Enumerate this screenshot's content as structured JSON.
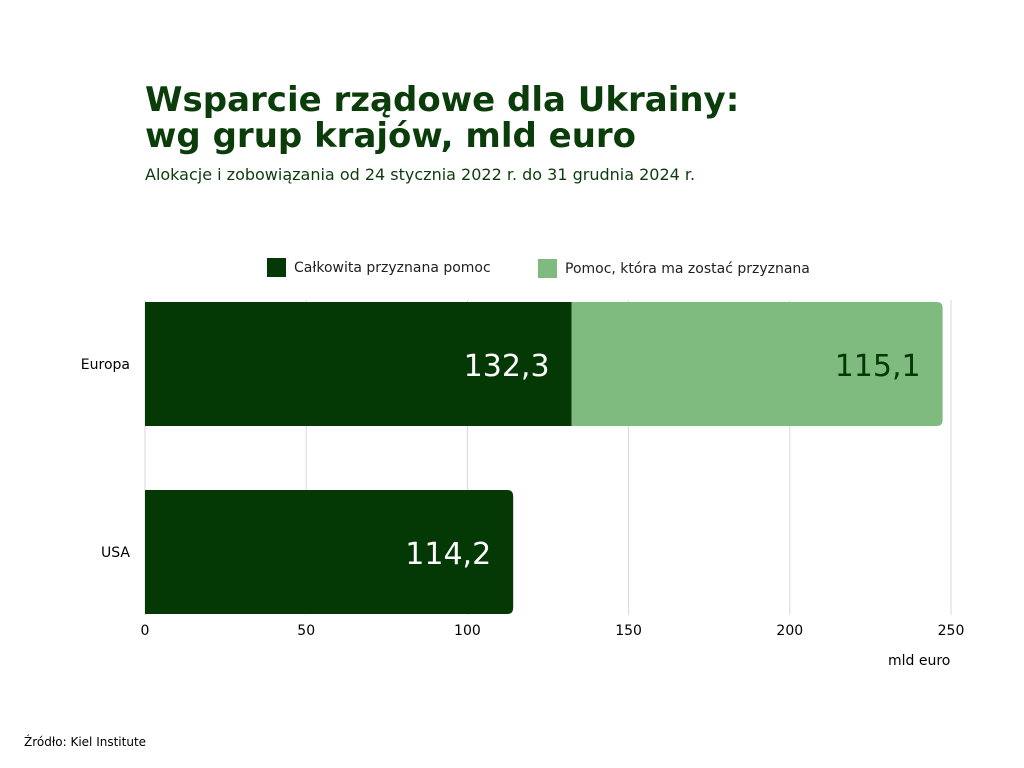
{
  "chart_data": {
    "type": "bar",
    "orientation": "horizontal",
    "stacked": true,
    "title": "Wsparcie rządowe dla Ukrainy:\nwg grup krajów, mld euro",
    "subtitle": "Alokacje i zobowiązania od 24 stycznia 2022 r. do 31 grudnia 2024 r.",
    "categories": [
      "Europa",
      "USA"
    ],
    "series": [
      {
        "name": "Całkowita przyznana pomoc",
        "values": [
          132.3,
          114.2
        ],
        "labels": [
          "132,3",
          "114,2"
        ],
        "color": "#043804"
      },
      {
        "name": "Pomoc, która ma zostać przyznana",
        "values": [
          115.1,
          0
        ],
        "labels": [
          "115,1",
          ""
        ],
        "color": "#7fba7f"
      }
    ],
    "xlim": [
      0,
      250
    ],
    "x_ticks": [
      0,
      50,
      100,
      150,
      200,
      250
    ],
    "x_tick_labels": [
      "0",
      "50",
      "100",
      "150",
      "200",
      "250"
    ],
    "xlabel": "mld euro",
    "grid": true,
    "legend_position": "top",
    "source": "Źródło: Kiel Institute"
  }
}
